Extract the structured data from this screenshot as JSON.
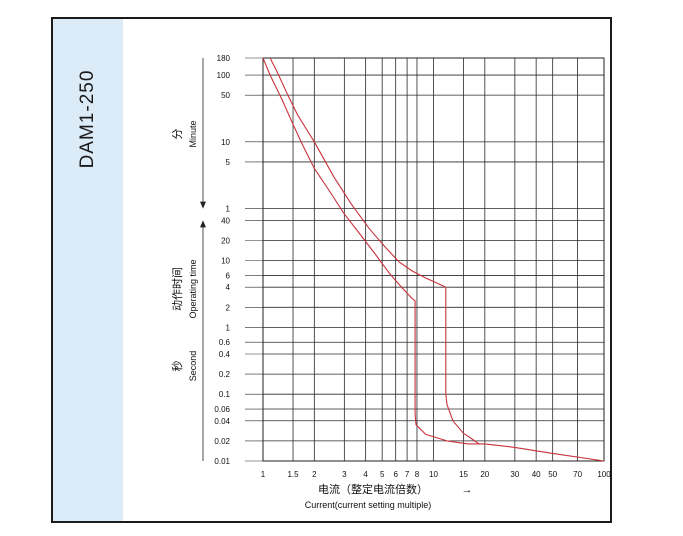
{
  "panel": {
    "model_label": "DAM1-250",
    "accent_color": "#dcebf8"
  },
  "chart_data": {
    "type": "line",
    "title": "",
    "xscale": "log",
    "yscale": "log",
    "xlim": [
      1,
      100
    ],
    "ylim": [
      0.01,
      10800
    ],
    "grid": true,
    "x_ticks": [
      "1",
      "1.5",
      "2",
      "3",
      "4",
      "5",
      "6",
      "7",
      "8",
      "10",
      "15",
      "20",
      "30",
      "40",
      "50",
      "70",
      "100"
    ],
    "x_tick_values": [
      1,
      1.5,
      2,
      3,
      4,
      5,
      6,
      7,
      8,
      10,
      15,
      20,
      30,
      40,
      50,
      70,
      100
    ],
    "xlabel_cn": "电流（整定电流倍数）",
    "xlabel_arrow": "→",
    "xlabel_en": "Current(current setting multiple)",
    "y_ticks_minute": {
      "labels": [
        "180",
        "100",
        "50",
        "10",
        "5",
        "1"
      ],
      "values": [
        10800,
        6000,
        3000,
        600,
        300,
        60
      ]
    },
    "y_ticks_second": {
      "labels": [
        "40",
        "20",
        "10",
        "6",
        "4",
        "2",
        "1",
        "0.6",
        "0.4",
        "0.2",
        "0.1",
        "0.06",
        "0.04",
        "0.02",
        "0.01"
      ],
      "values": [
        40,
        20,
        10,
        6,
        4,
        2,
        1,
        0.6,
        0.4,
        0.2,
        0.1,
        0.06,
        0.04,
        0.02,
        0.01
      ]
    },
    "ylabel_group_minute": {
      "cn": "分",
      "en": "Minute"
    },
    "ylabel_main": {
      "cn": "动作时间",
      "en": "Operating time"
    },
    "ylabel_group_second": {
      "cn": "秒",
      "en": "Second"
    },
    "series": [
      {
        "color": "#c8323c",
        "x": [
          1.0,
          1.05,
          1.1,
          1.2,
          1.3,
          1.5,
          1.7,
          2.0,
          2.4,
          3.0,
          3.7,
          4.5,
          5.5,
          6.5,
          7.5,
          7.8,
          7.8,
          7.9,
          9.0,
          12.0,
          16.0,
          20.0,
          30.0,
          50.0,
          100.0
        ],
        "y": [
          10800,
          8000,
          6000,
          3800,
          2500,
          1100,
          550,
          240,
          120,
          50,
          25,
          13,
          6.5,
          4.0,
          2.7,
          2.5,
          0.05,
          0.035,
          0.025,
          0.02,
          0.018,
          0.018,
          0.016,
          0.013,
          0.01
        ]
      },
      {
        "color": "#c8323c",
        "x": [
          1.1,
          1.2,
          1.4,
          1.6,
          2.0,
          2.6,
          3.3,
          4.2,
          5.2,
          6.3,
          7.5,
          9.0,
          10.5,
          11.8,
          11.8,
          12.0,
          13.0,
          15.0,
          17.0,
          18.5
        ],
        "y": [
          10800,
          7000,
          3000,
          1500,
          600,
          180,
          70,
          30,
          16,
          9.5,
          7.0,
          5.5,
          4.6,
          4.0,
          0.1,
          0.07,
          0.04,
          0.026,
          0.021,
          0.018
        ]
      }
    ]
  }
}
